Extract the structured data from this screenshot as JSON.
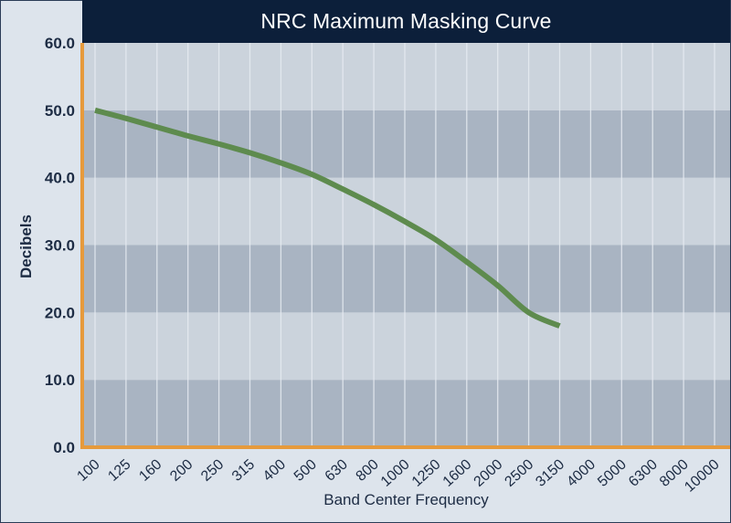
{
  "chart_data": {
    "type": "line",
    "title": "NRC Maximum Masking Curve",
    "xlabel": "Band Center Frequency",
    "ylabel": "Decibels",
    "ylim": [
      0,
      60
    ],
    "ytick_labels": [
      "0.0",
      "10.0",
      "20.0",
      "30.0",
      "40.0",
      "50.0",
      "60.0"
    ],
    "categories": [
      "100",
      "125",
      "160",
      "200",
      "250",
      "315",
      "400",
      "500",
      "630",
      "800",
      "1000",
      "1250",
      "1600",
      "2000",
      "2500",
      "3150",
      "4000",
      "5000",
      "6300",
      "8000",
      "10000"
    ],
    "series": [
      {
        "values": [
          50,
          48.8,
          47.5,
          46.2,
          45,
          43.7,
          42.2,
          40.5,
          38.3,
          36,
          33.5,
          30.8,
          27.5,
          24,
          20,
          18,
          null,
          null,
          null,
          null,
          null
        ]
      }
    ],
    "grid": true,
    "colors": {
      "line": "#5e8b4e",
      "axis": "#e69a3c",
      "band_dark": "#a9b4c2",
      "band_light": "#cbd3dc",
      "vgrid": "#e6ebf1",
      "title_bg": "#0c1f3a"
    }
  }
}
